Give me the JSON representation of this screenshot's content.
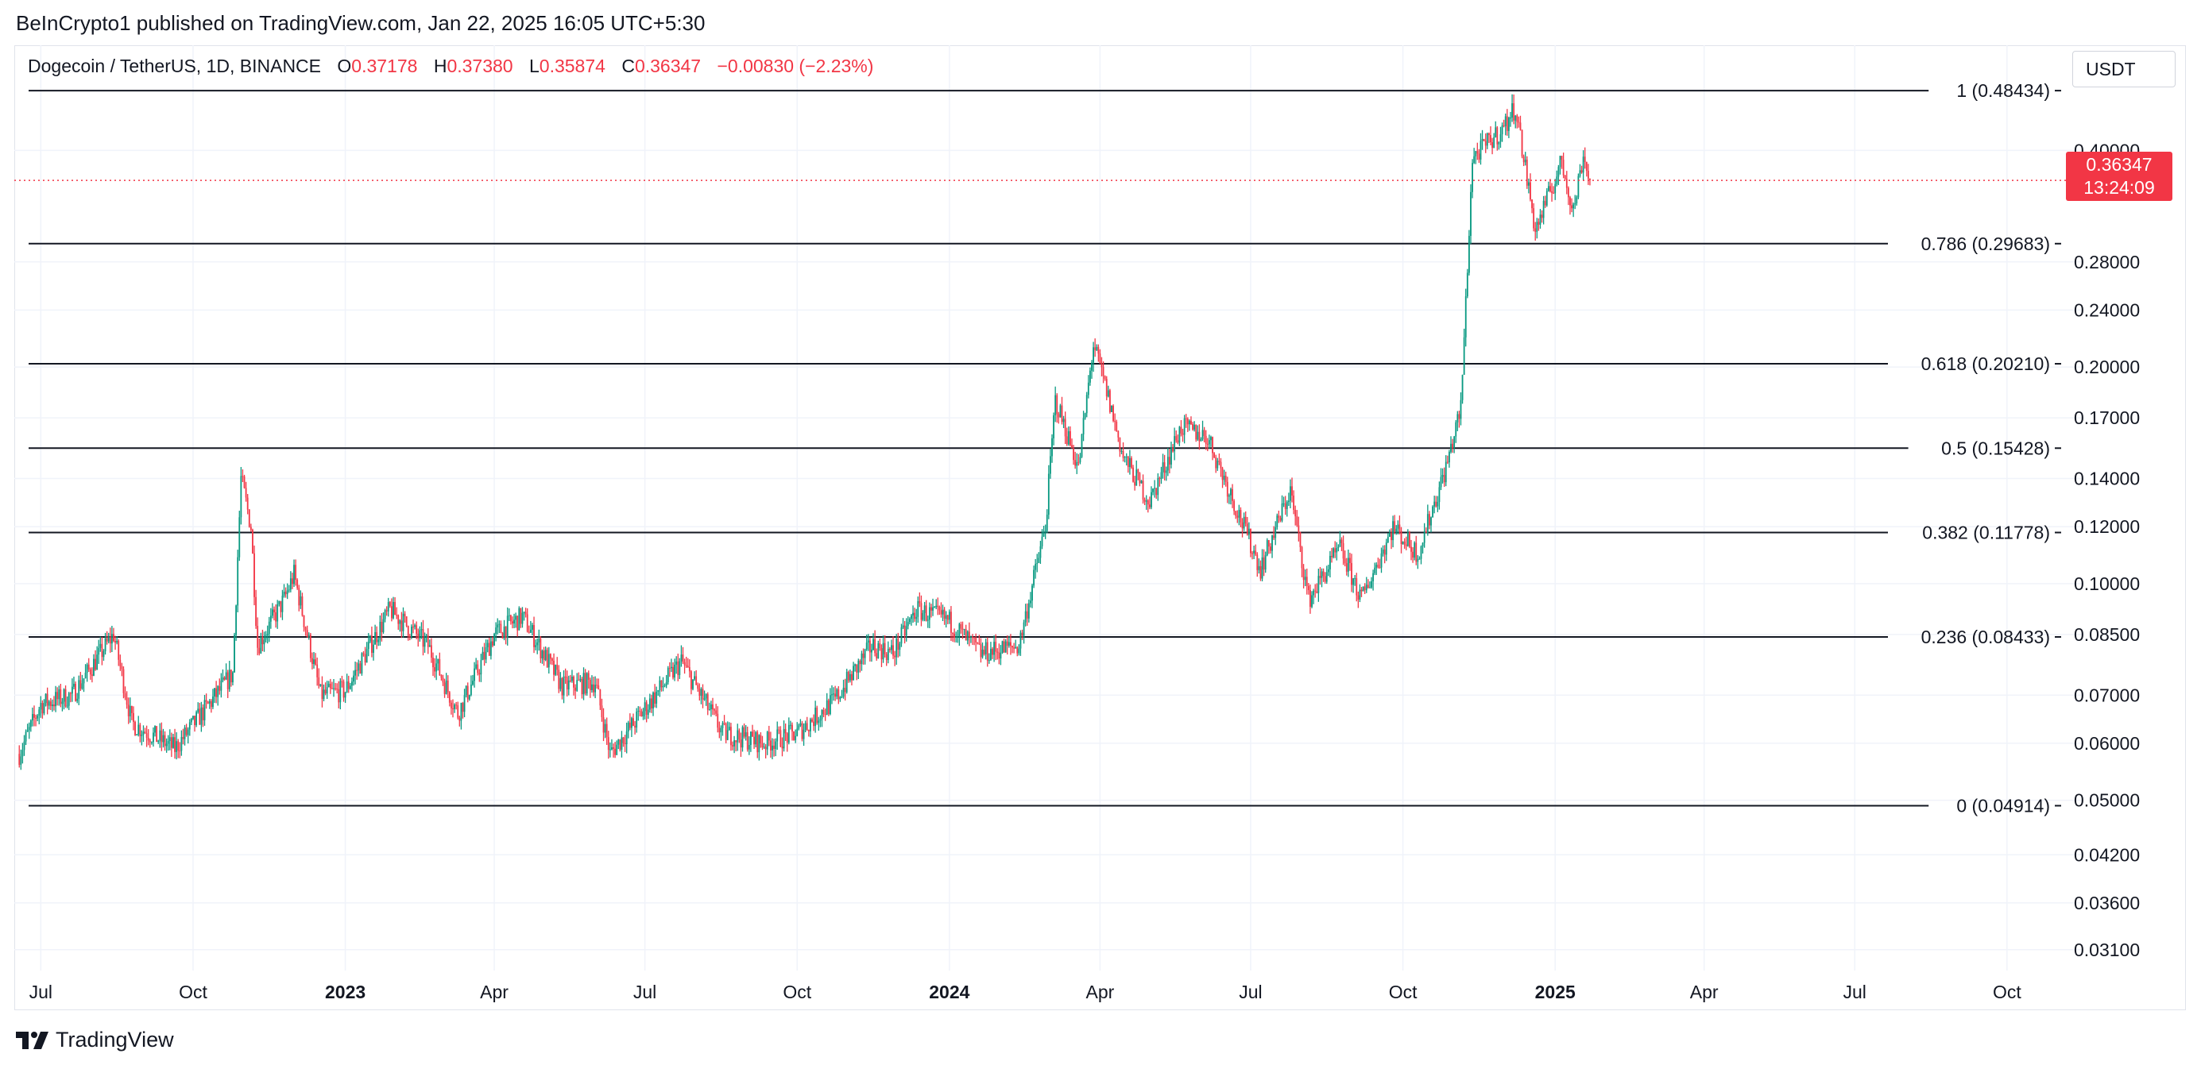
{
  "attribution": "BeInCrypto1 published on TradingView.com, Jan 22, 2025 16:05 UTC+5:30",
  "legend": {
    "symbol": "Dogecoin / TetherUS, 1D, BINANCE",
    "open_label": "O",
    "open": "0.37178",
    "high_label": "H",
    "high": "0.37380",
    "low_label": "L",
    "low": "0.35874",
    "close_label": "C",
    "close": "0.36347",
    "change": "−0.00830 (−2.23%)"
  },
  "currency_button": "USDT",
  "price_tag": {
    "price": "0.36347",
    "countdown": "13:24:09"
  },
  "footer_logo": "TradingView",
  "colors": {
    "up": "#089981",
    "down": "#f23645",
    "fib_line": "#131722",
    "grid": "#f0f3fa",
    "last_price_line": "#f23645"
  },
  "chart_data": {
    "type": "candlestick",
    "symbol": "DOGEUSDT",
    "timeframe": "1D",
    "scale": "log",
    "x_range": [
      "2022-06-15",
      "2025-11-20"
    ],
    "ylim": [
      0.029,
      0.56
    ],
    "y_ticks": [
      "0.40000",
      "0.28000",
      "0.24000",
      "0.20000",
      "0.17000",
      "0.14000",
      "0.12000",
      "0.10000",
      "0.08500",
      "0.07000",
      "0.06000",
      "0.05000",
      "0.04200",
      "0.03600",
      "0.03100"
    ],
    "x_ticks": [
      {
        "date": "2022-07-01",
        "label": "Jul",
        "bold": false
      },
      {
        "date": "2022-10-01",
        "label": "Oct",
        "bold": false
      },
      {
        "date": "2023-01-01",
        "label": "2023",
        "bold": true
      },
      {
        "date": "2023-04-01",
        "label": "Apr",
        "bold": false
      },
      {
        "date": "2023-07-01",
        "label": "Jul",
        "bold": false
      },
      {
        "date": "2023-10-01",
        "label": "Oct",
        "bold": false
      },
      {
        "date": "2024-01-01",
        "label": "2024",
        "bold": true
      },
      {
        "date": "2024-04-01",
        "label": "Apr",
        "bold": false
      },
      {
        "date": "2024-07-01",
        "label": "Jul",
        "bold": false
      },
      {
        "date": "2024-10-01",
        "label": "Oct",
        "bold": false
      },
      {
        "date": "2025-01-01",
        "label": "2025",
        "bold": true
      },
      {
        "date": "2025-04-01",
        "label": "Apr",
        "bold": false
      },
      {
        "date": "2025-07-01",
        "label": "Jul",
        "bold": false
      },
      {
        "date": "2025-10-01",
        "label": "Oct",
        "bold": false
      }
    ],
    "fib_levels": [
      {
        "ratio": "1",
        "price": 0.48434,
        "label": "1 (0.48434)"
      },
      {
        "ratio": "0.786",
        "price": 0.29683,
        "label": "0.786 (0.29683)"
      },
      {
        "ratio": "0.618",
        "price": 0.2021,
        "label": "0.618 (0.20210)"
      },
      {
        "ratio": "0.5",
        "price": 0.15428,
        "label": "0.5 (0.15428)"
      },
      {
        "ratio": "0.382",
        "price": 0.11778,
        "label": "0.382 (0.11778)"
      },
      {
        "ratio": "0.236",
        "price": 0.08433,
        "label": "0.236 (0.08433)"
      },
      {
        "ratio": "0",
        "price": 0.04914,
        "label": "0 (0.04914)"
      }
    ],
    "last_price": 0.36347,
    "price_path": [
      [
        "2022-06-18",
        0.058
      ],
      [
        "2022-07-01",
        0.068
      ],
      [
        "2022-07-20",
        0.07
      ],
      [
        "2022-08-14",
        0.085
      ],
      [
        "2022-08-25",
        0.064
      ],
      [
        "2022-09-20",
        0.059
      ],
      [
        "2022-10-25",
        0.075
      ],
      [
        "2022-10-30",
        0.14
      ],
      [
        "2022-11-05",
        0.12
      ],
      [
        "2022-11-09",
        0.082
      ],
      [
        "2022-11-25",
        0.095
      ],
      [
        "2022-12-01",
        0.103
      ],
      [
        "2022-12-17",
        0.07
      ],
      [
        "2023-01-01",
        0.071
      ],
      [
        "2023-01-28",
        0.092
      ],
      [
        "2023-02-20",
        0.082
      ],
      [
        "2023-03-10",
        0.066
      ],
      [
        "2023-04-01",
        0.085
      ],
      [
        "2023-04-18",
        0.09
      ],
      [
        "2023-05-12",
        0.072
      ],
      [
        "2023-06-01",
        0.073
      ],
      [
        "2023-06-10",
        0.058
      ],
      [
        "2023-07-01",
        0.067
      ],
      [
        "2023-07-23",
        0.078
      ],
      [
        "2023-08-17",
        0.062
      ],
      [
        "2023-09-11",
        0.06
      ],
      [
        "2023-10-01",
        0.062
      ],
      [
        "2023-10-24",
        0.069
      ],
      [
        "2023-11-15",
        0.082
      ],
      [
        "2023-11-28",
        0.08
      ],
      [
        "2023-12-12",
        0.092
      ],
      [
        "2023-12-31",
        0.089
      ],
      [
        "2024-01-20",
        0.08
      ],
      [
        "2024-02-12",
        0.082
      ],
      [
        "2024-02-28",
        0.12
      ],
      [
        "2024-03-05",
        0.18
      ],
      [
        "2024-03-19",
        0.145
      ],
      [
        "2024-03-28",
        0.215
      ],
      [
        "2024-04-05",
        0.185
      ],
      [
        "2024-04-15",
        0.15
      ],
      [
        "2024-05-01",
        0.13
      ],
      [
        "2024-05-20",
        0.165
      ],
      [
        "2024-06-05",
        0.16
      ],
      [
        "2024-06-25",
        0.123
      ],
      [
        "2024-07-07",
        0.105
      ],
      [
        "2024-07-25",
        0.135
      ],
      [
        "2024-08-05",
        0.095
      ],
      [
        "2024-08-24",
        0.112
      ],
      [
        "2024-09-06",
        0.095
      ],
      [
        "2024-09-25",
        0.12
      ],
      [
        "2024-10-10",
        0.11
      ],
      [
        "2024-10-27",
        0.145
      ],
      [
        "2024-11-05",
        0.175
      ],
      [
        "2024-11-12",
        0.39
      ],
      [
        "2024-12-01",
        0.43
      ],
      [
        "2024-12-08",
        0.46
      ],
      [
        "2024-12-20",
        0.31
      ],
      [
        "2025-01-05",
        0.385
      ],
      [
        "2025-01-12",
        0.33
      ],
      [
        "2025-01-18",
        0.395
      ],
      [
        "2025-01-22",
        0.363
      ]
    ]
  }
}
